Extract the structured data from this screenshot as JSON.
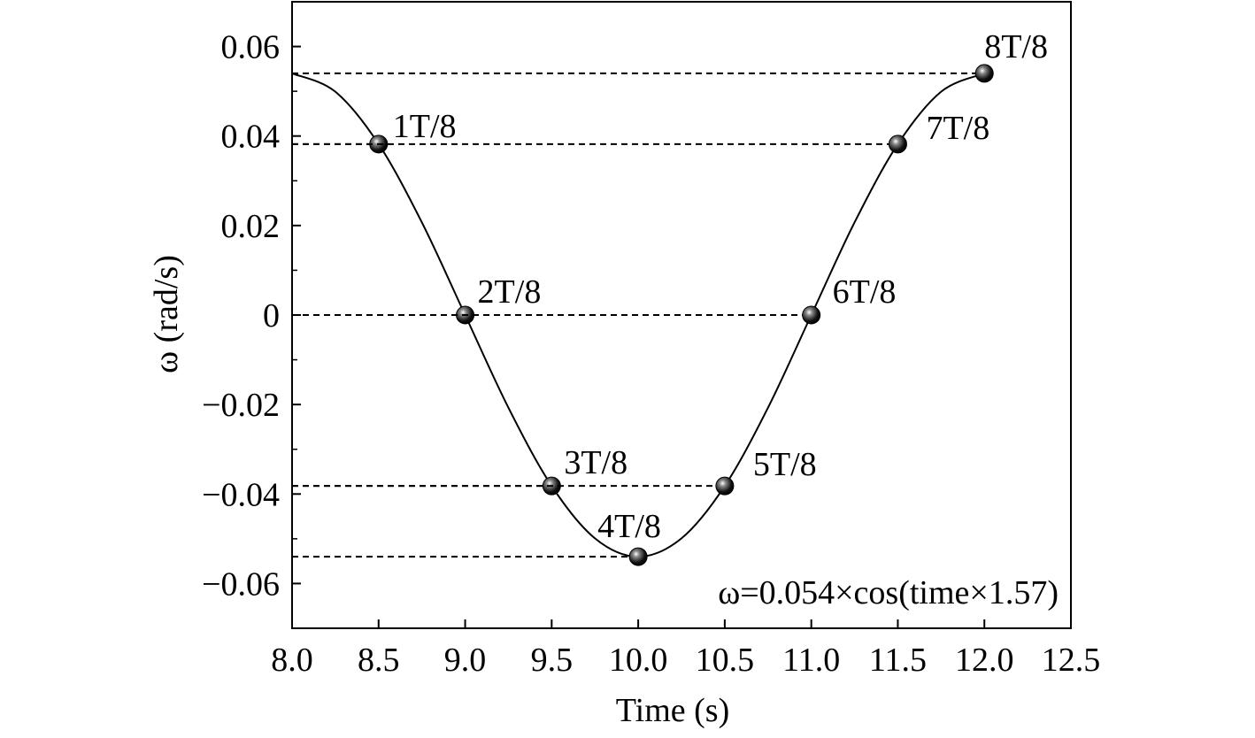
{
  "chart_data": {
    "type": "line",
    "x_label": "Time (s)",
    "y_label": "ω (rad/s)",
    "annotation": "ω=0.054×cos(time×1.57)",
    "xlim": [
      8.0,
      12.5
    ],
    "ylim": [
      -0.07,
      0.07
    ],
    "xticks": [
      {
        "value": 8.0,
        "label": "8.0"
      },
      8.5,
      {
        "value": 9.0,
        "label": "9.0"
      },
      9.5,
      {
        "value": 10.0,
        "label": "10.0"
      },
      10.5,
      {
        "value": 11.0,
        "label": "11.0"
      },
      11.5,
      {
        "value": 12.0,
        "label": "12.0"
      },
      12.5
    ],
    "yticks": [
      {
        "value": -0.06,
        "label": "−0.06"
      },
      {
        "value": -0.04,
        "label": "−0.04"
      },
      {
        "value": -0.02,
        "label": "−0.02"
      },
      0,
      0.02,
      0.04,
      0.06
    ],
    "series": [
      {
        "color": "#000000",
        "x": [
          8.0,
          8.25,
          8.5,
          8.75,
          9.0,
          9.25,
          9.5,
          9.75,
          10.0,
          10.25,
          10.5,
          10.75,
          11.0,
          11.25,
          11.5,
          11.75,
          12.0
        ],
        "values": [
          0.054,
          0.0499,
          0.0382,
          0.0207,
          0,
          -0.0207,
          -0.0382,
          -0.0499,
          -0.054,
          -0.0499,
          -0.0382,
          -0.0207,
          0,
          0.0207,
          0.0382,
          0.0499,
          0.054
        ]
      },
      {
        "color": "#000000",
        "marker": "sphere",
        "x": [
          8.5,
          9.0,
          9.5,
          10.0,
          10.5,
          11.0,
          11.5,
          12.0
        ],
        "values": [
          0.0382,
          0,
          -0.0382,
          -0.054,
          -0.0382,
          0,
          0.0382,
          0.054
        ],
        "point_labels": [
          "1T/8",
          "2T/8",
          "3T/8",
          "4T/8",
          "5T/8",
          "6T/8",
          "7T/8",
          "8T/8"
        ]
      }
    ]
  }
}
